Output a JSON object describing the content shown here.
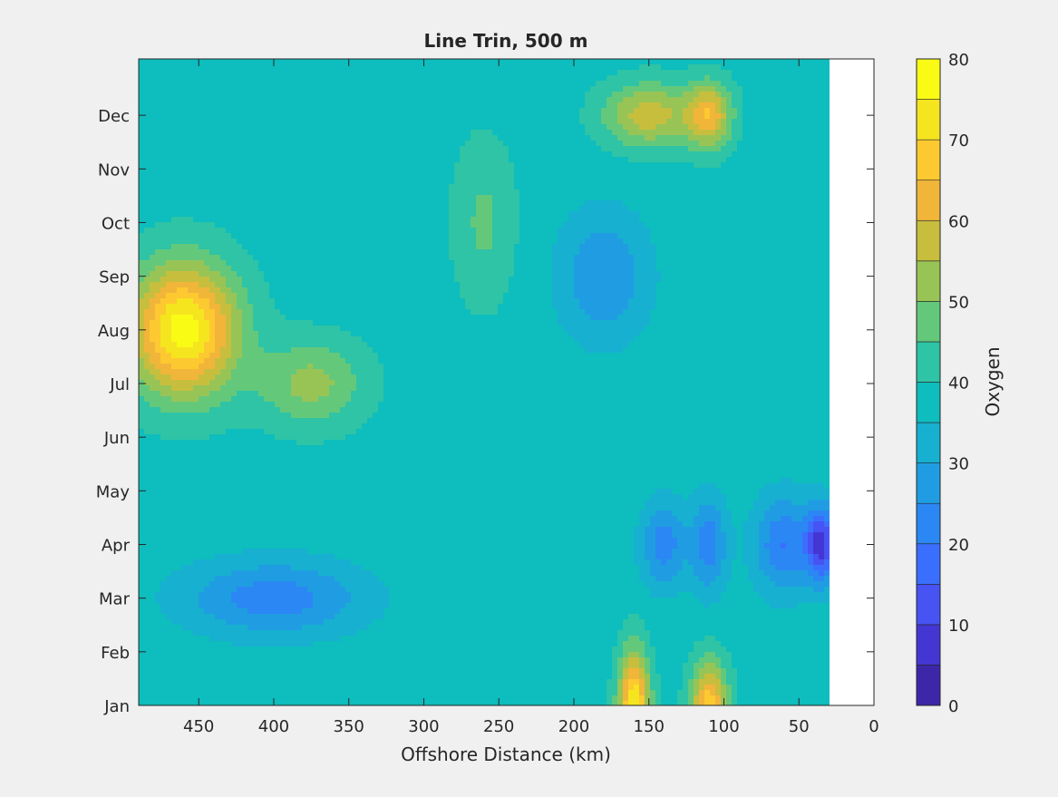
{
  "chart_data": {
    "type": "heatmap",
    "title": "Line Trin, 500 m",
    "xlabel": "Offshore Distance (km)",
    "ylabel": "",
    "xlim": [
      490,
      0
    ],
    "x_reversed": true,
    "x_ticks": [
      450,
      400,
      350,
      300,
      250,
      200,
      150,
      100,
      50,
      0
    ],
    "y_ticks": [
      "Jan",
      "Feb",
      "Mar",
      "Apr",
      "May",
      "Jun",
      "Jul",
      "Aug",
      "Sep",
      "Oct",
      "Nov",
      "Dec"
    ],
    "data_extent_x": [
      490,
      30
    ],
    "colorbar": {
      "label": "Oxygen",
      "range": [
        0,
        80
      ],
      "ticks": [
        0,
        10,
        20,
        30,
        40,
        50,
        60,
        70,
        80
      ],
      "levels": [
        0,
        5,
        10,
        15,
        20,
        25,
        30,
        35,
        40,
        45,
        50,
        55,
        60,
        65,
        70,
        75,
        80
      ],
      "colors": [
        "#3e26a8",
        "#4436d3",
        "#4753f2",
        "#3a6ffd",
        "#2b87f3",
        "#209de2",
        "#17b0d1",
        "#0ebdbd",
        "#2ec4a5",
        "#64c87b",
        "#98c456",
        "#c7be3e",
        "#f1b53a",
        "#fdc930",
        "#f5e51f",
        "#f9fb15"
      ]
    },
    "features": [
      {
        "x": 460,
        "y": "Aug",
        "value": 78,
        "spread_x": 35,
        "spread_y": 1.2
      },
      {
        "x": 375,
        "y": "Jul",
        "value": 52,
        "spread_x": 35,
        "spread_y": 0.8
      },
      {
        "x": 160,
        "y": "Jan",
        "value": 75,
        "spread_x": 10,
        "spread_y": 1.0
      },
      {
        "x": 110,
        "y": "Jan",
        "value": 68,
        "spread_x": 12,
        "spread_y": 0.8
      },
      {
        "x": 150,
        "y": "Dec",
        "value": 58,
        "spread_x": 30,
        "spread_y": 0.6
      },
      {
        "x": 110,
        "y": "Dec",
        "value": 62,
        "spread_x": 15,
        "spread_y": 0.6
      },
      {
        "x": 260,
        "y": "Oct",
        "value": 46,
        "spread_x": 20,
        "spread_y": 1.5
      },
      {
        "x": 400,
        "y": "Mar",
        "value": 22,
        "spread_x": 60,
        "spread_y": 0.7
      },
      {
        "x": 180,
        "y": "Sep",
        "value": 25,
        "spread_x": 30,
        "spread_y": 1.2
      },
      {
        "x": 35,
        "y": "Apr",
        "value": 10,
        "spread_x": 10,
        "spread_y": 0.7
      },
      {
        "x": 60,
        "y": "Apr",
        "value": 20,
        "spread_x": 20,
        "spread_y": 0.9
      },
      {
        "x": 140,
        "y": "Apr",
        "value": 22,
        "spread_x": 15,
        "spread_y": 0.8
      },
      {
        "x": 110,
        "y": "Apr",
        "value": 22,
        "spread_x": 12,
        "spread_y": 0.9
      }
    ]
  }
}
